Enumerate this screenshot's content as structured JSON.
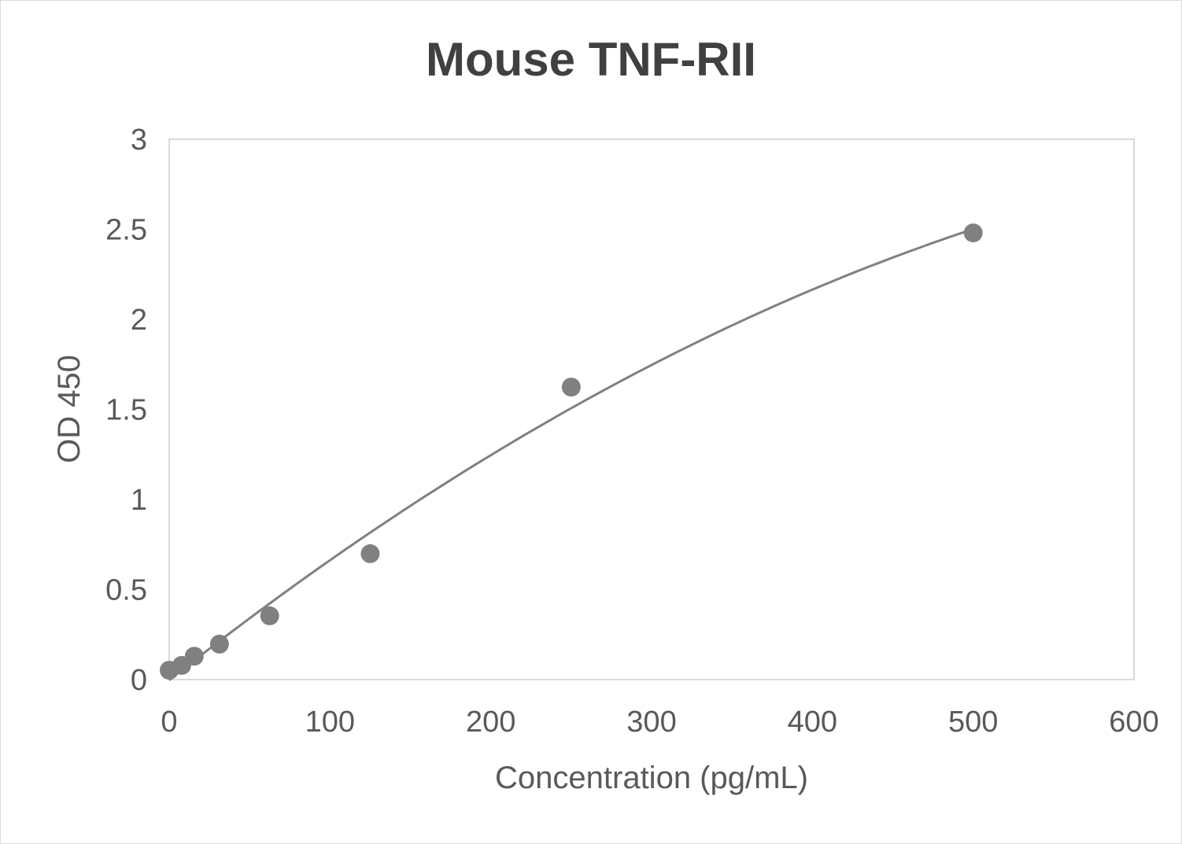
{
  "chart_data": {
    "type": "scatter",
    "title": "Mouse TNF-RII",
    "xlabel": "Concentration (pg/mL)",
    "ylabel": "OD 450",
    "xlim": [
      0,
      600
    ],
    "ylim": [
      0,
      3
    ],
    "xticks": [
      0,
      100,
      200,
      300,
      400,
      500,
      600
    ],
    "yticks": [
      0,
      0.5,
      1,
      1.5,
      2,
      2.5,
      3
    ],
    "ytick_labels": [
      "0",
      "0.5",
      "1",
      "1.5",
      "2",
      "2.5",
      "3"
    ],
    "grid": false,
    "legend": "none",
    "trendline": "polynomial (order 2)",
    "points": [
      {
        "x": 0,
        "y": 0.052
      },
      {
        "x": 7.8,
        "y": 0.079
      },
      {
        "x": 15.6,
        "y": 0.13
      },
      {
        "x": 31.25,
        "y": 0.197
      },
      {
        "x": 62.5,
        "y": 0.354
      },
      {
        "x": 125,
        "y": 0.699
      },
      {
        "x": 250,
        "y": 1.624
      },
      {
        "x": 500,
        "y": 2.48
      }
    ],
    "colors": {
      "marker": "#808080",
      "line": "#808080",
      "text": "#595959",
      "title": "#404040",
      "axis": "#d9d9d9"
    }
  }
}
